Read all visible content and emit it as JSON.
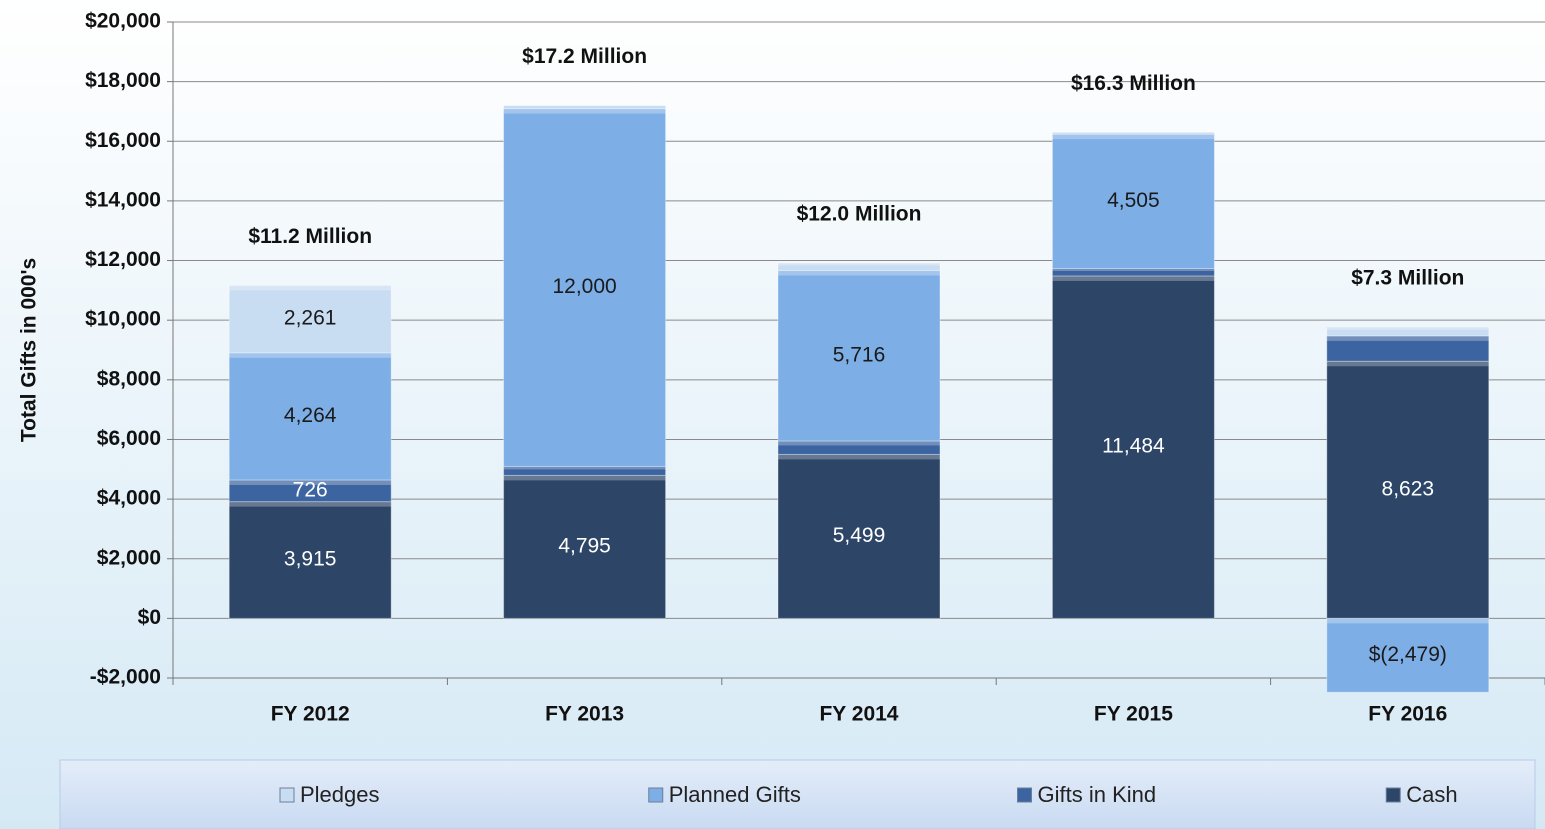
{
  "chart_data": {
    "type": "stacked_bar",
    "y_label": "Total Gifts in 000's",
    "categories": [
      "FY 2012",
      "FY 2013",
      "FY 2014",
      "FY 2015",
      "FY 2016"
    ],
    "series": [
      {
        "name": "Cash",
        "color": "#2d4668",
        "label_color": "#ffffff",
        "values": [
          3915,
          4795,
          5499,
          11484,
          8623
        ],
        "value_labels": [
          "3,915",
          "4,795",
          "5,499",
          "11,484",
          "8,623"
        ]
      },
      {
        "name": "Gifts in Kind",
        "color": "#3b64a0",
        "label_color": "#ffffff",
        "values": [
          726,
          300,
          450,
          250,
          850
        ],
        "value_labels": [
          "726",
          null,
          null,
          null,
          null
        ]
      },
      {
        "name": "Planned Gifts",
        "color": "#7eaee6",
        "label_color": "#1a1a1a",
        "values": [
          4264,
          12000,
          5716,
          4505,
          -2479
        ],
        "value_labels": [
          "4,264",
          "12,000",
          "5,716",
          "4,505",
          "$(2,479)"
        ]
      },
      {
        "name": "Pledges",
        "color": "#c8dcf2",
        "label_color": "#1a1a1a",
        "values": [
          2261,
          100,
          250,
          60,
          300
        ],
        "value_labels": [
          "2,261",
          null,
          null,
          null,
          null
        ]
      }
    ],
    "annotations": [
      "$11.2 Million",
      "$17.2 Million",
      "$12.0 Million",
      "$16.3 Million",
      "$7.3 Million"
    ],
    "ylim": [
      -2000,
      20000
    ],
    "yticks": [
      {
        "value": -2000,
        "label": "-$2,000"
      },
      {
        "value": 0,
        "label": "$0"
      },
      {
        "value": 2000,
        "label": "$2,000"
      },
      {
        "value": 4000,
        "label": "$4,000"
      },
      {
        "value": 6000,
        "label": "$6,000"
      },
      {
        "value": 8000,
        "label": "$8,000"
      },
      {
        "value": 10000,
        "label": "$10,000"
      },
      {
        "value": 12000,
        "label": "$12,000"
      },
      {
        "value": 14000,
        "label": "$14,000"
      },
      {
        "value": 16000,
        "label": "$16,000"
      },
      {
        "value": 18000,
        "label": "$18,000"
      },
      {
        "value": 20000,
        "label": "$20,000"
      }
    ],
    "grid": true,
    "legend": "bottom"
  }
}
